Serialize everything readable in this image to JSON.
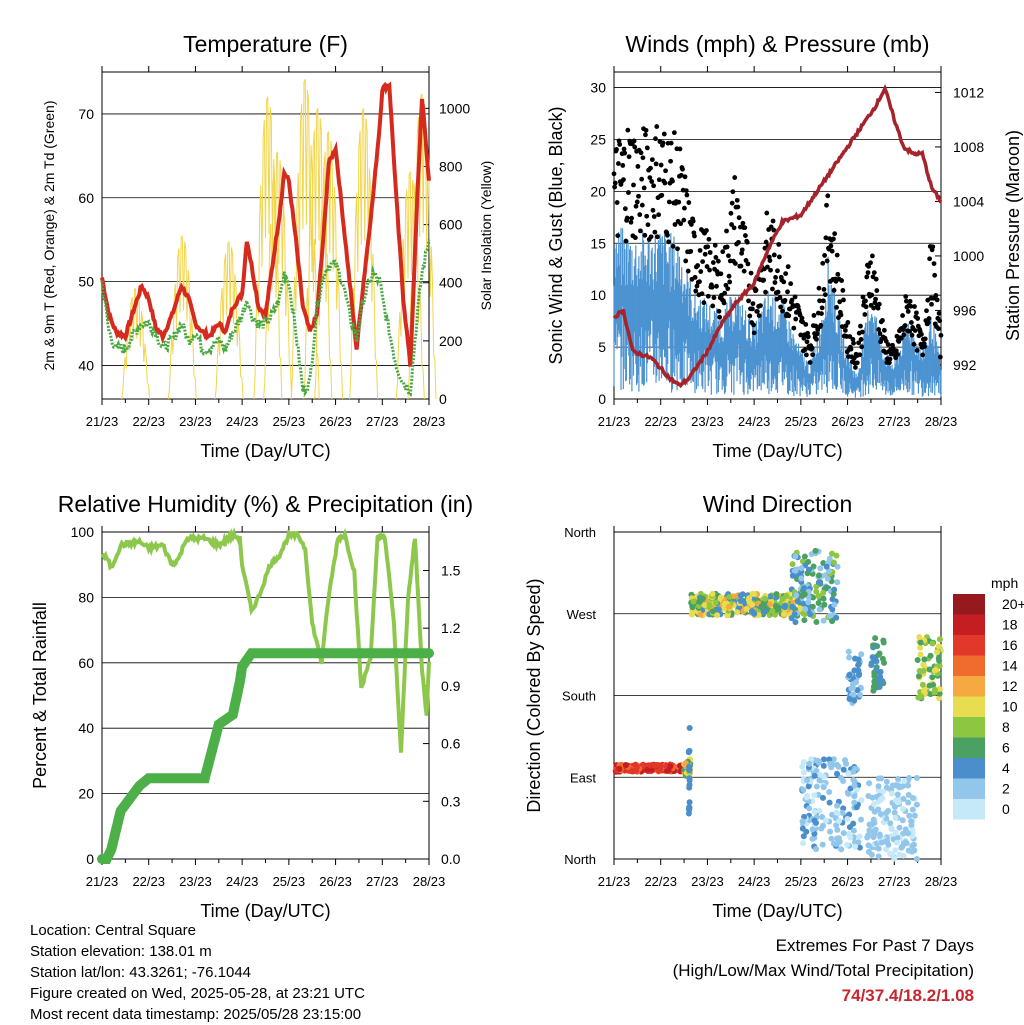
{
  "time_ticks": [
    "21/23",
    "22/23",
    "23/23",
    "24/23",
    "25/23",
    "26/23",
    "27/23",
    "28/23"
  ],
  "chart_data": [
    {
      "type": "line",
      "title": "Temperature (F)",
      "xlabel": "Time (Day/UTC)",
      "ylabel": "2m & 9m T (Red, Orange) & 2m Td (Green)",
      "y2label": "Solar Insolation (Yellow)",
      "ylim": [
        36,
        75
      ],
      "y_ticks": [
        40,
        50,
        60,
        70
      ],
      "y2lim": [
        0,
        1125
      ],
      "y2_ticks": [
        0,
        200,
        400,
        600,
        800,
        1000
      ],
      "x": [
        0,
        0.15,
        0.3,
        0.5,
        0.7,
        0.85,
        1,
        1.15,
        1.3,
        1.5,
        1.7,
        1.85,
        2,
        2.15,
        2.3,
        2.5,
        2.65,
        2.8,
        3,
        3.1,
        3.2,
        3.35,
        3.5,
        3.65,
        3.8,
        3.9,
        4,
        4.15,
        4.3,
        4.45,
        4.6,
        4.75,
        4.85,
        5,
        5.15,
        5.3,
        5.45,
        5.6,
        5.8,
        5.95,
        6,
        6.15,
        6.3,
        6.45,
        6.6,
        6.75,
        6.85,
        7
      ],
      "series": [
        {
          "name": "T",
          "color": "#d62a1e",
          "values": [
            50.5,
            46,
            44,
            43.5,
            47,
            49.5,
            48,
            44.5,
            43.5,
            46,
            49.5,
            48,
            45,
            44,
            43.5,
            45,
            44,
            47,
            48.5,
            55,
            52,
            47,
            46,
            52,
            58,
            63,
            62,
            55,
            47,
            44,
            46,
            56,
            64,
            66,
            58,
            50,
            42,
            50,
            60,
            69,
            73,
            73.5,
            60,
            48,
            40,
            60,
            72,
            62
          ]
        },
        {
          "name": "Td",
          "color": "#47a83f",
          "values": [
            50,
            44,
            42,
            42,
            44,
            45,
            45,
            44,
            42,
            43,
            45,
            43,
            44,
            42,
            42,
            43,
            42,
            44,
            46,
            48,
            46,
            45,
            45,
            46,
            48,
            51,
            50,
            44,
            37,
            38,
            47,
            51,
            52,
            52,
            50,
            46,
            43,
            48,
            51,
            50,
            48,
            44,
            40,
            38,
            37,
            46,
            51,
            55
          ]
        }
      ],
      "solar": {
        "name": "Solar Insolation",
        "color": "#f1d54b",
        "peaks": [
          [
            0.72,
            380
          ],
          [
            1.72,
            560
          ],
          [
            2.72,
            540
          ],
          [
            3.55,
            1040
          ],
          [
            3.76,
            850
          ],
          [
            4.35,
            1100
          ],
          [
            4.62,
            1000
          ],
          [
            4.85,
            920
          ],
          [
            5.6,
            1000
          ],
          [
            6.6,
            780
          ],
          [
            6.85,
            1050
          ]
        ]
      }
    },
    {
      "type": "scatter",
      "title": "Winds (mph) & Pressure (mb)",
      "xlabel": "Time (Day/UTC)",
      "ylabel": "Sonic Wind & Gust (Blue, Black)",
      "y2label": "Station Pressure (Maroon)",
      "ylim": [
        0,
        31.5
      ],
      "y_ticks": [
        0,
        5,
        10,
        15,
        20,
        25,
        30
      ],
      "y2lim": [
        989.5,
        1013.5
      ],
      "y2_ticks": [
        992,
        996,
        1000,
        1004,
        1008,
        1012
      ],
      "wind": {
        "color": "#4c93d1",
        "x": [
          0,
          0.5,
          1,
          1.4,
          1.7,
          2,
          2.3,
          2.6,
          3,
          3.3,
          3.6,
          4,
          4.2,
          4.4,
          4.6,
          4.8,
          5,
          5.2,
          5.5,
          5.8,
          6,
          6.3,
          6.6,
          6.8,
          7
        ],
        "values": [
          14,
          13.5,
          14,
          13,
          9,
          8,
          7,
          9,
          6,
          9,
          8,
          4,
          3,
          6,
          12,
          7,
          4,
          2,
          9,
          4,
          3,
          7,
          4,
          7,
          3
        ]
      },
      "gust": {
        "color": "#000000",
        "x": [
          0,
          0.3,
          0.6,
          1,
          1.4,
          1.7,
          2,
          2.3,
          2.6,
          3,
          3.3,
          3.6,
          4,
          4.2,
          4.4,
          4.6,
          4.8,
          5,
          5.2,
          5.5,
          5.8,
          6,
          6.3,
          6.6,
          6.8,
          7
        ],
        "values": [
          20,
          22,
          21,
          22,
          20,
          14,
          13,
          11,
          18,
          9,
          15,
          12,
          7,
          5,
          9,
          17,
          11,
          6,
          4,
          13,
          5,
          4,
          9,
          5,
          13,
          5
        ]
      },
      "pressure": {
        "color": "#a5232a",
        "x": [
          0,
          0.2,
          0.4,
          0.8,
          1.2,
          1.4,
          1.6,
          2,
          2.3,
          2.6,
          3,
          3.3,
          3.6,
          4,
          4.3,
          4.6,
          5,
          5.3,
          5.6,
          5.8,
          6,
          6.2,
          6.4,
          6.6,
          6.8,
          7
        ],
        "values": [
          995.5,
          996,
          993,
          992.5,
          991,
          990.5,
          991,
          993,
          995,
          996.5,
          998,
          1000.5,
          1002.5,
          1003,
          1004.5,
          1006,
          1008,
          1009.5,
          1011,
          1012.3,
          1010,
          1008,
          1007.5,
          1007.5,
          1005,
          1004
        ]
      }
    },
    {
      "type": "line",
      "title": "Relative Humidity (%) & Precipitation (in)",
      "xlabel": "Time (Day/UTC)",
      "ylabel": "Percent & Total Rainfall",
      "ylim": [
        0,
        100
      ],
      "y_ticks": [
        0,
        20,
        40,
        60,
        80,
        100
      ],
      "y2lim": [
        0,
        1.7
      ],
      "y2_ticks": [
        "0.0",
        "0.3",
        "0.6",
        "0.9",
        "1.2",
        "1.5"
      ],
      "x": [
        0,
        0.1,
        0.2,
        0.4,
        0.8,
        1,
        1.3,
        1.5,
        1.65,
        1.8,
        2.2,
        2.5,
        2.8,
        2.95,
        3,
        3.2,
        3.35,
        3.6,
        3.8,
        4,
        4.2,
        4.35,
        4.5,
        4.7,
        4.85,
        5.05,
        5.2,
        5.4,
        5.55,
        5.75,
        5.9,
        6.05,
        6.25,
        6.4,
        6.55,
        6.7,
        6.85,
        6.95,
        7
      ],
      "series": [
        {
          "name": "RH",
          "color": "#8dc84d",
          "values": [
            93,
            92,
            89,
            96,
            97,
            95,
            96,
            90,
            92,
            98,
            98,
            96,
            99,
            98,
            90,
            76,
            80,
            90,
            93,
            99,
            99,
            95,
            72,
            60,
            80,
            98,
            99,
            88,
            52,
            62,
            98,
            99,
            72,
            32,
            80,
            98,
            58,
            44,
            60
          ]
        },
        {
          "name": "Precip",
          "color": "#4caf47",
          "values": [
            0,
            0,
            0.05,
            0.25,
            0.38,
            0.42,
            0.42,
            0.42,
            0.42,
            0.42,
            0.42,
            0.7,
            0.75,
            0.92,
            1.0,
            1.07,
            1.07,
            1.07,
            1.07,
            1.07,
            1.07,
            1.07,
            1.07,
            1.07,
            1.07,
            1.07,
            1.07,
            1.07,
            1.07,
            1.07,
            1.07,
            1.07,
            1.07,
            1.07,
            1.07,
            1.07,
            1.07,
            1.07,
            1.07
          ]
        }
      ]
    },
    {
      "type": "scatter",
      "title": "Wind Direction",
      "xlabel": "Time (Day/UTC)",
      "ylabel": "Direction (Colored By Speed)",
      "y_ticks": [
        "North",
        "East",
        "South",
        "West",
        "North"
      ],
      "legend_title": "mph",
      "legend": [
        "0",
        "2",
        "4",
        "6",
        "8",
        "10",
        "12",
        "14",
        "16",
        "18",
        "20+"
      ],
      "legend_colors": [
        "#c6e9f8",
        "#92c6eb",
        "#4a8ecb",
        "#4ba064",
        "#8dc641",
        "#e8dc50",
        "#f5a940",
        "#ef6b2e",
        "#e2382a",
        "#c41d22",
        "#961a1d"
      ],
      "clusters": [
        {
          "x0": 0,
          "x1": 1.5,
          "dir": 100,
          "spread": 4,
          "speed": [
            14,
            18
          ]
        },
        {
          "x0": 1.5,
          "x1": 1.65,
          "dir": 100,
          "spread": 10,
          "speed": [
            6,
            12
          ]
        },
        {
          "x0": 1.6,
          "x1": 1.62,
          "dir": 100,
          "spread": 50,
          "speed": [
            3,
            5
          ],
          "n": 18
        },
        {
          "x0": 1.65,
          "x1": 4.0,
          "dir": 280,
          "spread": 12,
          "speed": [
            4,
            12
          ]
        },
        {
          "x0": 3.8,
          "x1": 4.8,
          "dir": 300,
          "spread": 40,
          "speed": [
            1,
            8
          ]
        },
        {
          "x0": 4.0,
          "x1": 5.3,
          "dir": 60,
          "spread": 50,
          "speed": [
            0,
            4
          ]
        },
        {
          "x0": 5.0,
          "x1": 5.3,
          "dir": 200,
          "spread": 30,
          "speed": [
            2,
            5
          ]
        },
        {
          "x0": 5.4,
          "x1": 6.5,
          "dir": 45,
          "spread": 45,
          "speed": [
            0,
            3
          ]
        },
        {
          "x0": 5.5,
          "x1": 5.8,
          "dir": 215,
          "spread": 30,
          "speed": [
            3,
            7
          ]
        },
        {
          "x0": 6.5,
          "x1": 7.0,
          "dir": 210,
          "spread": 35,
          "speed": [
            5,
            11
          ]
        }
      ]
    }
  ],
  "info": {
    "location": "Location: Central Square",
    "elevation": "Station elevation: 138.01 m",
    "latlon": "Station lat/lon: 43.3261; -76.1044",
    "created": "Figure created on Wed, 2025-05-28, at 23:21 UTC",
    "recent": "Most recent data timestamp: 2025/05/28 23:15:00"
  },
  "extremes": {
    "line1": "Extremes For Past 7 Days",
    "line2": "(High/Low/Max Wind/Total Precipitation)",
    "values": "74/37.4/18.2/1.08"
  }
}
